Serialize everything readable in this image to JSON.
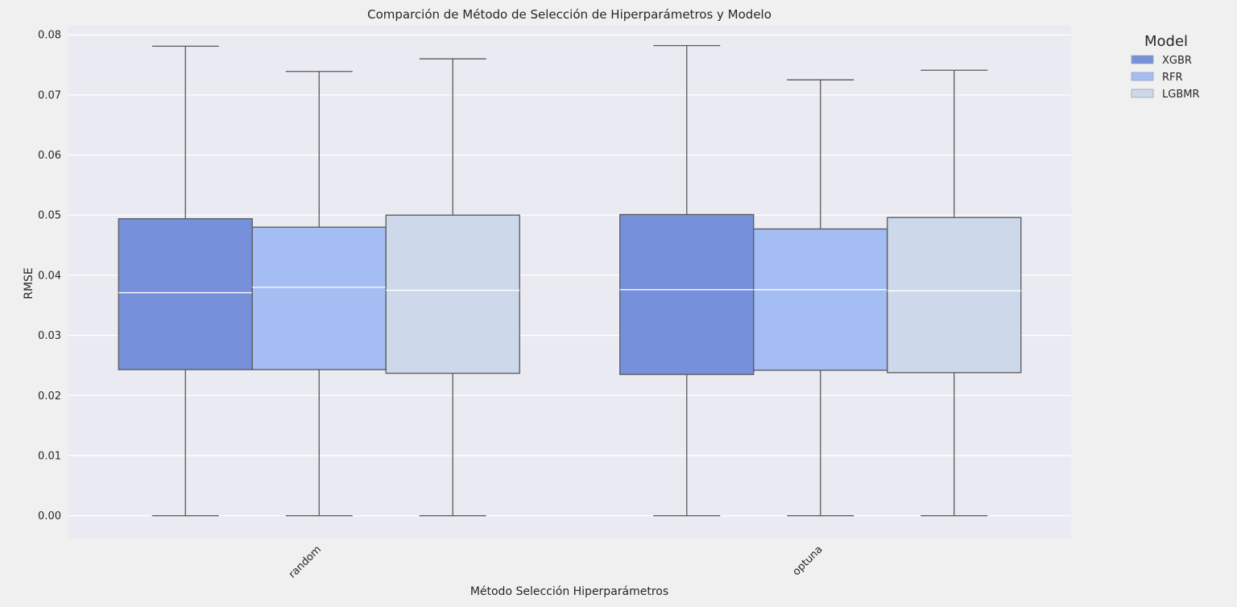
{
  "chart_data": {
    "type": "box",
    "title": "Comparción de Método de Selección de Hiperparámetros y Modelo",
    "xlabel": "Método Selección Hiperparámetros",
    "ylabel": "RMSE",
    "categories": [
      "random",
      "optuna"
    ],
    "ylim": [
      -0.0038,
      0.0815
    ],
    "yticks": [
      "0.00",
      "0.01",
      "0.02",
      "0.03",
      "0.04",
      "0.05",
      "0.06",
      "0.07",
      "0.08"
    ],
    "ytick_values": [
      0.0,
      0.01,
      0.02,
      0.03,
      0.04,
      0.05,
      0.06,
      0.07,
      0.08
    ],
    "grid": true,
    "legend": {
      "title": "Model",
      "placement": "outside-top-right"
    },
    "series": [
      {
        "name": "XGBR",
        "color": "#7690dc",
        "boxes": [
          {
            "category": "random",
            "whisker_low": 0.0,
            "q1": 0.0243,
            "median": 0.0371,
            "q3": 0.0494,
            "whisker_high": 0.0781
          },
          {
            "category": "optuna",
            "whisker_low": 0.0,
            "q1": 0.0235,
            "median": 0.0376,
            "q3": 0.0501,
            "whisker_high": 0.0782
          }
        ]
      },
      {
        "name": "RFR",
        "color": "#a4bdf2",
        "boxes": [
          {
            "category": "random",
            "whisker_low": 0.0,
            "q1": 0.0243,
            "median": 0.038,
            "q3": 0.048,
            "whisker_high": 0.0739
          },
          {
            "category": "optuna",
            "whisker_low": 0.0,
            "q1": 0.0242,
            "median": 0.0376,
            "q3": 0.0477,
            "whisker_high": 0.0725
          }
        ]
      },
      {
        "name": "LGBMR",
        "color": "#cdd8ea",
        "boxes": [
          {
            "category": "random",
            "whisker_low": 0.0,
            "q1": 0.0237,
            "median": 0.0375,
            "q3": 0.05,
            "whisker_high": 0.076
          },
          {
            "category": "optuna",
            "whisker_low": 0.0,
            "q1": 0.0238,
            "median": 0.0374,
            "q3": 0.0496,
            "whisker_high": 0.0741
          }
        ]
      }
    ]
  }
}
